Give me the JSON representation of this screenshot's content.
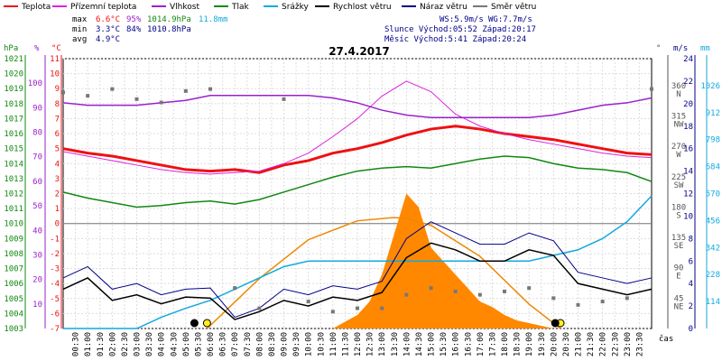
{
  "chart_data": {
    "type": "line",
    "title": "27.4.2017",
    "legend": [
      {
        "name": "Teplota",
        "color": "#ee1111"
      },
      {
        "name": "Přízemní teplota",
        "color": "#dd22dd"
      },
      {
        "name": "Vlhkost",
        "color": "#9922cc"
      },
      {
        "name": "Tlak",
        "color": "#118811"
      },
      {
        "name": "Srážky",
        "color": "#11aadd"
      },
      {
        "name": "Rychlost větru",
        "color": "#000000"
      },
      {
        "name": "Náraz větru",
        "color": "#000088"
      },
      {
        "name": "Směr větru",
        "color": "#777777"
      }
    ],
    "stats": {
      "max_label": "max",
      "min_label": "min",
      "avg_label": "avg",
      "max_temp": "6.6°C",
      "max_hum": "95%",
      "max_press": "1014.9hPa",
      "max_rain": "11.8mm",
      "min_temp": "3.3°C",
      "min_hum": "84%",
      "min_press": "1010.8hPa",
      "avg_temp": "4.9°C",
      "ws": "WS:5.9m/s",
      "wg": "WG:7.7m/s",
      "sun": "Slunce Východ:05:52  Západ:20:17",
      "moon": "Měsíc  Východ:5:41   Západ:20:24"
    },
    "axes": {
      "hpa_unit": "hPa",
      "pct_unit": "%",
      "c_unit": "°C",
      "deg_unit": "°",
      "ms_unit": "m/s",
      "mm_unit": "mm",
      "time_unit": "čas",
      "hpa_ticks": [
        "1021",
        "1020",
        "1019",
        "1018",
        "1017",
        "1016",
        "1015",
        "1014",
        "1013",
        "1012",
        "1011",
        "1010",
        "1009",
        "1008",
        "1007",
        "1006",
        "1005",
        "1004",
        "1003"
      ],
      "pct_ticks": [
        "100",
        "90",
        "80",
        "70",
        "60",
        "50",
        "40",
        "30",
        "20",
        "10"
      ],
      "c_ticks": [
        "11",
        "10",
        "9",
        "8",
        "7",
        "6",
        "5",
        "4",
        "3",
        "2",
        "1",
        "0",
        "-1",
        "-2",
        "-3",
        "-4",
        "-5",
        "-6",
        "-7"
      ],
      "dir_ticks": [
        "360 N",
        "315 NW",
        "270 W",
        "225 SW",
        "180 S",
        "135 SE",
        "90 E",
        "45 NE"
      ],
      "ms_ticks": [
        "24",
        "22",
        "20",
        "18",
        "16",
        "14",
        "12",
        "10",
        "8",
        "6",
        "4",
        "2",
        "0"
      ],
      "mm_ticks": [
        "1026",
        "912",
        "798",
        "684",
        "570",
        "456",
        "342",
        "228",
        "114"
      ],
      "time_ticks": [
        "00:30",
        "01:00",
        "01:30",
        "02:00",
        "02:30",
        "03:00",
        "03:30",
        "04:00",
        "04:30",
        "05:00",
        "05:30",
        "06:00",
        "06:30",
        "07:00",
        "07:30",
        "08:00",
        "08:30",
        "09:00",
        "09:30",
        "10:00",
        "10:30",
        "11:00",
        "11:30",
        "12:00",
        "12:30",
        "13:00",
        "13:30",
        "14:00",
        "14:30",
        "15:00",
        "15:30",
        "16:00",
        "16:30",
        "17:00",
        "17:30",
        "18:00",
        "18:30",
        "19:00",
        "19:30",
        "20:00",
        "20:30",
        "21:00",
        "21:30",
        "22:00",
        "22:30",
        "23:00",
        "23:30"
      ]
    },
    "series": [
      {
        "name": "Teplota",
        "unit": "°C",
        "hours": [
          0,
          1,
          2,
          3,
          4,
          5,
          6,
          7,
          8,
          9,
          10,
          11,
          12,
          13,
          14,
          15,
          16,
          17,
          18,
          19,
          20,
          21,
          22,
          23,
          24
        ],
        "values": [
          5.0,
          4.7,
          4.5,
          4.2,
          3.9,
          3.6,
          3.5,
          3.6,
          3.4,
          3.9,
          4.2,
          4.7,
          5.0,
          5.4,
          5.9,
          6.3,
          6.5,
          6.3,
          6.0,
          5.8,
          5.6,
          5.3,
          5.0,
          4.7,
          4.6
        ]
      },
      {
        "name": "Přízemní teplota",
        "unit": "°C",
        "hours": [
          0,
          1,
          2,
          3,
          4,
          5,
          6,
          7,
          8,
          9,
          10,
          11,
          12,
          13,
          14,
          15,
          16,
          17,
          18,
          19,
          20,
          21,
          22,
          23,
          24
        ],
        "values": [
          4.8,
          4.5,
          4.2,
          3.9,
          3.6,
          3.4,
          3.3,
          3.4,
          3.5,
          4.0,
          4.7,
          5.8,
          7.0,
          8.5,
          9.5,
          8.8,
          7.3,
          6.5,
          6.0,
          5.6,
          5.3,
          5.0,
          4.7,
          4.5,
          4.4
        ]
      },
      {
        "name": "Vlhkost",
        "unit": "%",
        "hours": [
          0,
          1,
          2,
          3,
          4,
          5,
          6,
          7,
          8,
          9,
          10,
          11,
          12,
          13,
          14,
          15,
          16,
          17,
          18,
          19,
          20,
          21,
          22,
          23,
          24
        ],
        "values": [
          92,
          91,
          91,
          91,
          92,
          93,
          95,
          95,
          95,
          95,
          95,
          94,
          92,
          89,
          87,
          86,
          86,
          86,
          86,
          86,
          87,
          89,
          91,
          92,
          94
        ]
      },
      {
        "name": "Tlak",
        "unit": "hPa",
        "hours": [
          0,
          1,
          2,
          3,
          4,
          5,
          6,
          7,
          8,
          9,
          10,
          11,
          12,
          13,
          14,
          15,
          16,
          17,
          18,
          19,
          20,
          21,
          22,
          23,
          24
        ],
        "values": [
          1012.1,
          1011.7,
          1011.4,
          1011.1,
          1011.2,
          1011.4,
          1011.5,
          1011.3,
          1011.6,
          1012.1,
          1012.6,
          1013.1,
          1013.5,
          1013.7,
          1013.8,
          1013.7,
          1014.0,
          1014.3,
          1014.5,
          1014.4,
          1014.0,
          1013.7,
          1013.6,
          1013.4,
          1012.8
        ]
      },
      {
        "name": "Srážky",
        "unit": "mm",
        "hours": [
          0,
          1,
          2,
          3,
          4,
          5,
          6,
          7,
          8,
          9,
          10,
          11,
          12,
          13,
          14,
          15,
          16,
          17,
          18,
          19,
          20,
          21,
          22,
          23,
          24
        ],
        "values": [
          0,
          0,
          0,
          0,
          1.0,
          1.8,
          2.5,
          3.5,
          4.5,
          5.5,
          6.0,
          6.0,
          6.0,
          6.0,
          6.0,
          6.0,
          6.0,
          6.0,
          6.0,
          6.0,
          6.5,
          7.0,
          8.0,
          9.5,
          11.8
        ]
      },
      {
        "name": "Rychlost větru",
        "unit": "m/s",
        "hours": [
          0,
          1,
          2,
          3,
          4,
          5,
          6,
          7,
          8,
          9,
          10,
          11,
          12,
          13,
          14,
          15,
          16,
          17,
          18,
          19,
          20,
          21,
          22,
          23,
          24
        ],
        "values": [
          3.5,
          4.5,
          2.5,
          3.0,
          2.2,
          2.8,
          2.7,
          0.8,
          1.5,
          2.5,
          2.0,
          2.8,
          2.5,
          3.2,
          6.3,
          7.6,
          7.0,
          6.0,
          6.0,
          7.0,
          6.5,
          4.0,
          3.5,
          3.0,
          3.5
        ]
      },
      {
        "name": "Náraz větru",
        "unit": "m/s",
        "hours": [
          0,
          1,
          2,
          3,
          4,
          5,
          6,
          7,
          8,
          9,
          10,
          11,
          12,
          13,
          14,
          15,
          16,
          17,
          18,
          19,
          20,
          21,
          22,
          23,
          24
        ],
        "values": [
          4.5,
          5.5,
          3.5,
          4.0,
          3.0,
          3.5,
          3.6,
          1.0,
          1.8,
          3.5,
          3.0,
          3.8,
          3.5,
          4.2,
          8.0,
          9.5,
          8.5,
          7.5,
          7.5,
          8.5,
          7.8,
          5.0,
          4.5,
          4.0,
          4.5
        ]
      },
      {
        "name": "Směr větru",
        "unit": "°",
        "hours": [
          0,
          1,
          2,
          3,
          4,
          5,
          6,
          7,
          8,
          9,
          10,
          11,
          12,
          13,
          14,
          15,
          16,
          17,
          18,
          19,
          20,
          21,
          22,
          23,
          24
        ],
        "values": [
          350,
          345,
          355,
          340,
          335,
          352,
          355,
          60,
          30,
          340,
          40,
          25,
          30,
          30,
          50,
          60,
          55,
          50,
          55,
          60,
          45,
          35,
          40,
          45,
          355
        ]
      }
    ],
    "rain_area": {
      "hours": [
        11,
        12,
        12.5,
        13,
        13.5,
        14,
        14.5,
        15,
        15.5,
        16,
        16.5,
        17,
        17.5,
        18,
        18.5,
        19,
        19.5,
        20
      ],
      "values": [
        0,
        0.5,
        1.0,
        2.0,
        3.5,
        5.0,
        4.5,
        3.0,
        2.5,
        2.0,
        1.5,
        1.0,
        0.8,
        0.5,
        0.3,
        0.2,
        0.1,
        0
      ]
    },
    "sun_curve": {
      "hours": [
        5.87,
        8,
        10,
        12,
        13.5,
        14,
        15,
        17,
        19,
        20.28
      ],
      "values": [
        0,
        0.45,
        0.8,
        0.97,
        1.0,
        0.99,
        0.93,
        0.65,
        0.22,
        0
      ]
    },
    "sun_events": [
      {
        "kind": "sunrise",
        "time": "05:52"
      },
      {
        "kind": "sunset",
        "time": "20:17"
      }
    ],
    "moon_events": [
      {
        "kind": "moonrise",
        "time": "5:41"
      },
      {
        "kind": "moonset",
        "time": "20:24"
      }
    ],
    "ranges": {
      "temp": [
        -7,
        11
      ],
      "pressure": [
        1003,
        1021
      ],
      "humidity": [
        10,
        100
      ],
      "wind": [
        0,
        24
      ],
      "rain": [
        0,
        24
      ],
      "direction": [
        0,
        360
      ],
      "rain_area_mm": [
        0,
        10
      ]
    }
  }
}
